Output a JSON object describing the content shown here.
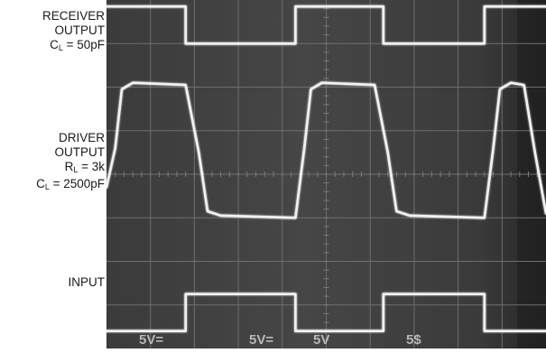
{
  "labels": {
    "receiver": {
      "line1": "RECEIVER",
      "line2": "OUTPUT",
      "cap_sym": "C",
      "cap_sub": "L",
      "cap_val": " = 50pF"
    },
    "driver": {
      "line1": "DRIVER",
      "line2": "OUTPUT",
      "res_sym": "R",
      "res_sub": "L",
      "res_val": " = 3k",
      "cap_sym": "C",
      "cap_sub": "L",
      "cap_val": " = 2500pF"
    },
    "input": {
      "line1": "INPUT"
    }
  },
  "scale_readouts": [
    "5V=",
    "5V=",
    "5V",
    "5$"
  ],
  "chart_data": {
    "type": "line",
    "grid": "on",
    "x_divisions": 10,
    "y_divisions": 8,
    "series": [
      {
        "name": "RECEIVER OUTPUT",
        "points": [
          [
            0,
            7.85
          ],
          [
            1.8,
            7.85
          ],
          [
            1.8,
            7.0
          ],
          [
            4.3,
            7.0
          ],
          [
            4.3,
            7.85
          ],
          [
            6.3,
            7.85
          ],
          [
            6.3,
            7.0
          ],
          [
            8.6,
            7.0
          ],
          [
            8.6,
            7.85
          ],
          [
            10,
            7.85
          ]
        ]
      },
      {
        "name": "DRIVER OUTPUT",
        "points": [
          [
            0,
            3.7
          ],
          [
            0.2,
            4.6
          ],
          [
            0.35,
            5.95
          ],
          [
            0.6,
            6.1
          ],
          [
            1.8,
            6.05
          ],
          [
            2.1,
            4.5
          ],
          [
            2.3,
            3.15
          ],
          [
            2.6,
            3.05
          ],
          [
            4.3,
            3.0
          ],
          [
            4.5,
            4.6
          ],
          [
            4.65,
            5.95
          ],
          [
            4.9,
            6.1
          ],
          [
            6.1,
            6.05
          ],
          [
            6.4,
            4.5
          ],
          [
            6.6,
            3.15
          ],
          [
            6.9,
            3.05
          ],
          [
            8.6,
            3.0
          ],
          [
            8.8,
            4.6
          ],
          [
            8.95,
            5.95
          ],
          [
            9.2,
            6.1
          ],
          [
            9.5,
            6.05
          ],
          [
            9.75,
            4.5
          ],
          [
            10,
            3.1
          ]
        ]
      },
      {
        "name": "INPUT",
        "points": [
          [
            0,
            0.4
          ],
          [
            1.8,
            0.4
          ],
          [
            1.8,
            1.25
          ],
          [
            4.3,
            1.25
          ],
          [
            4.3,
            0.4
          ],
          [
            6.3,
            0.4
          ],
          [
            6.3,
            1.25
          ],
          [
            8.6,
            1.25
          ],
          [
            8.6,
            0.4
          ],
          [
            10,
            0.4
          ]
        ]
      }
    ]
  }
}
